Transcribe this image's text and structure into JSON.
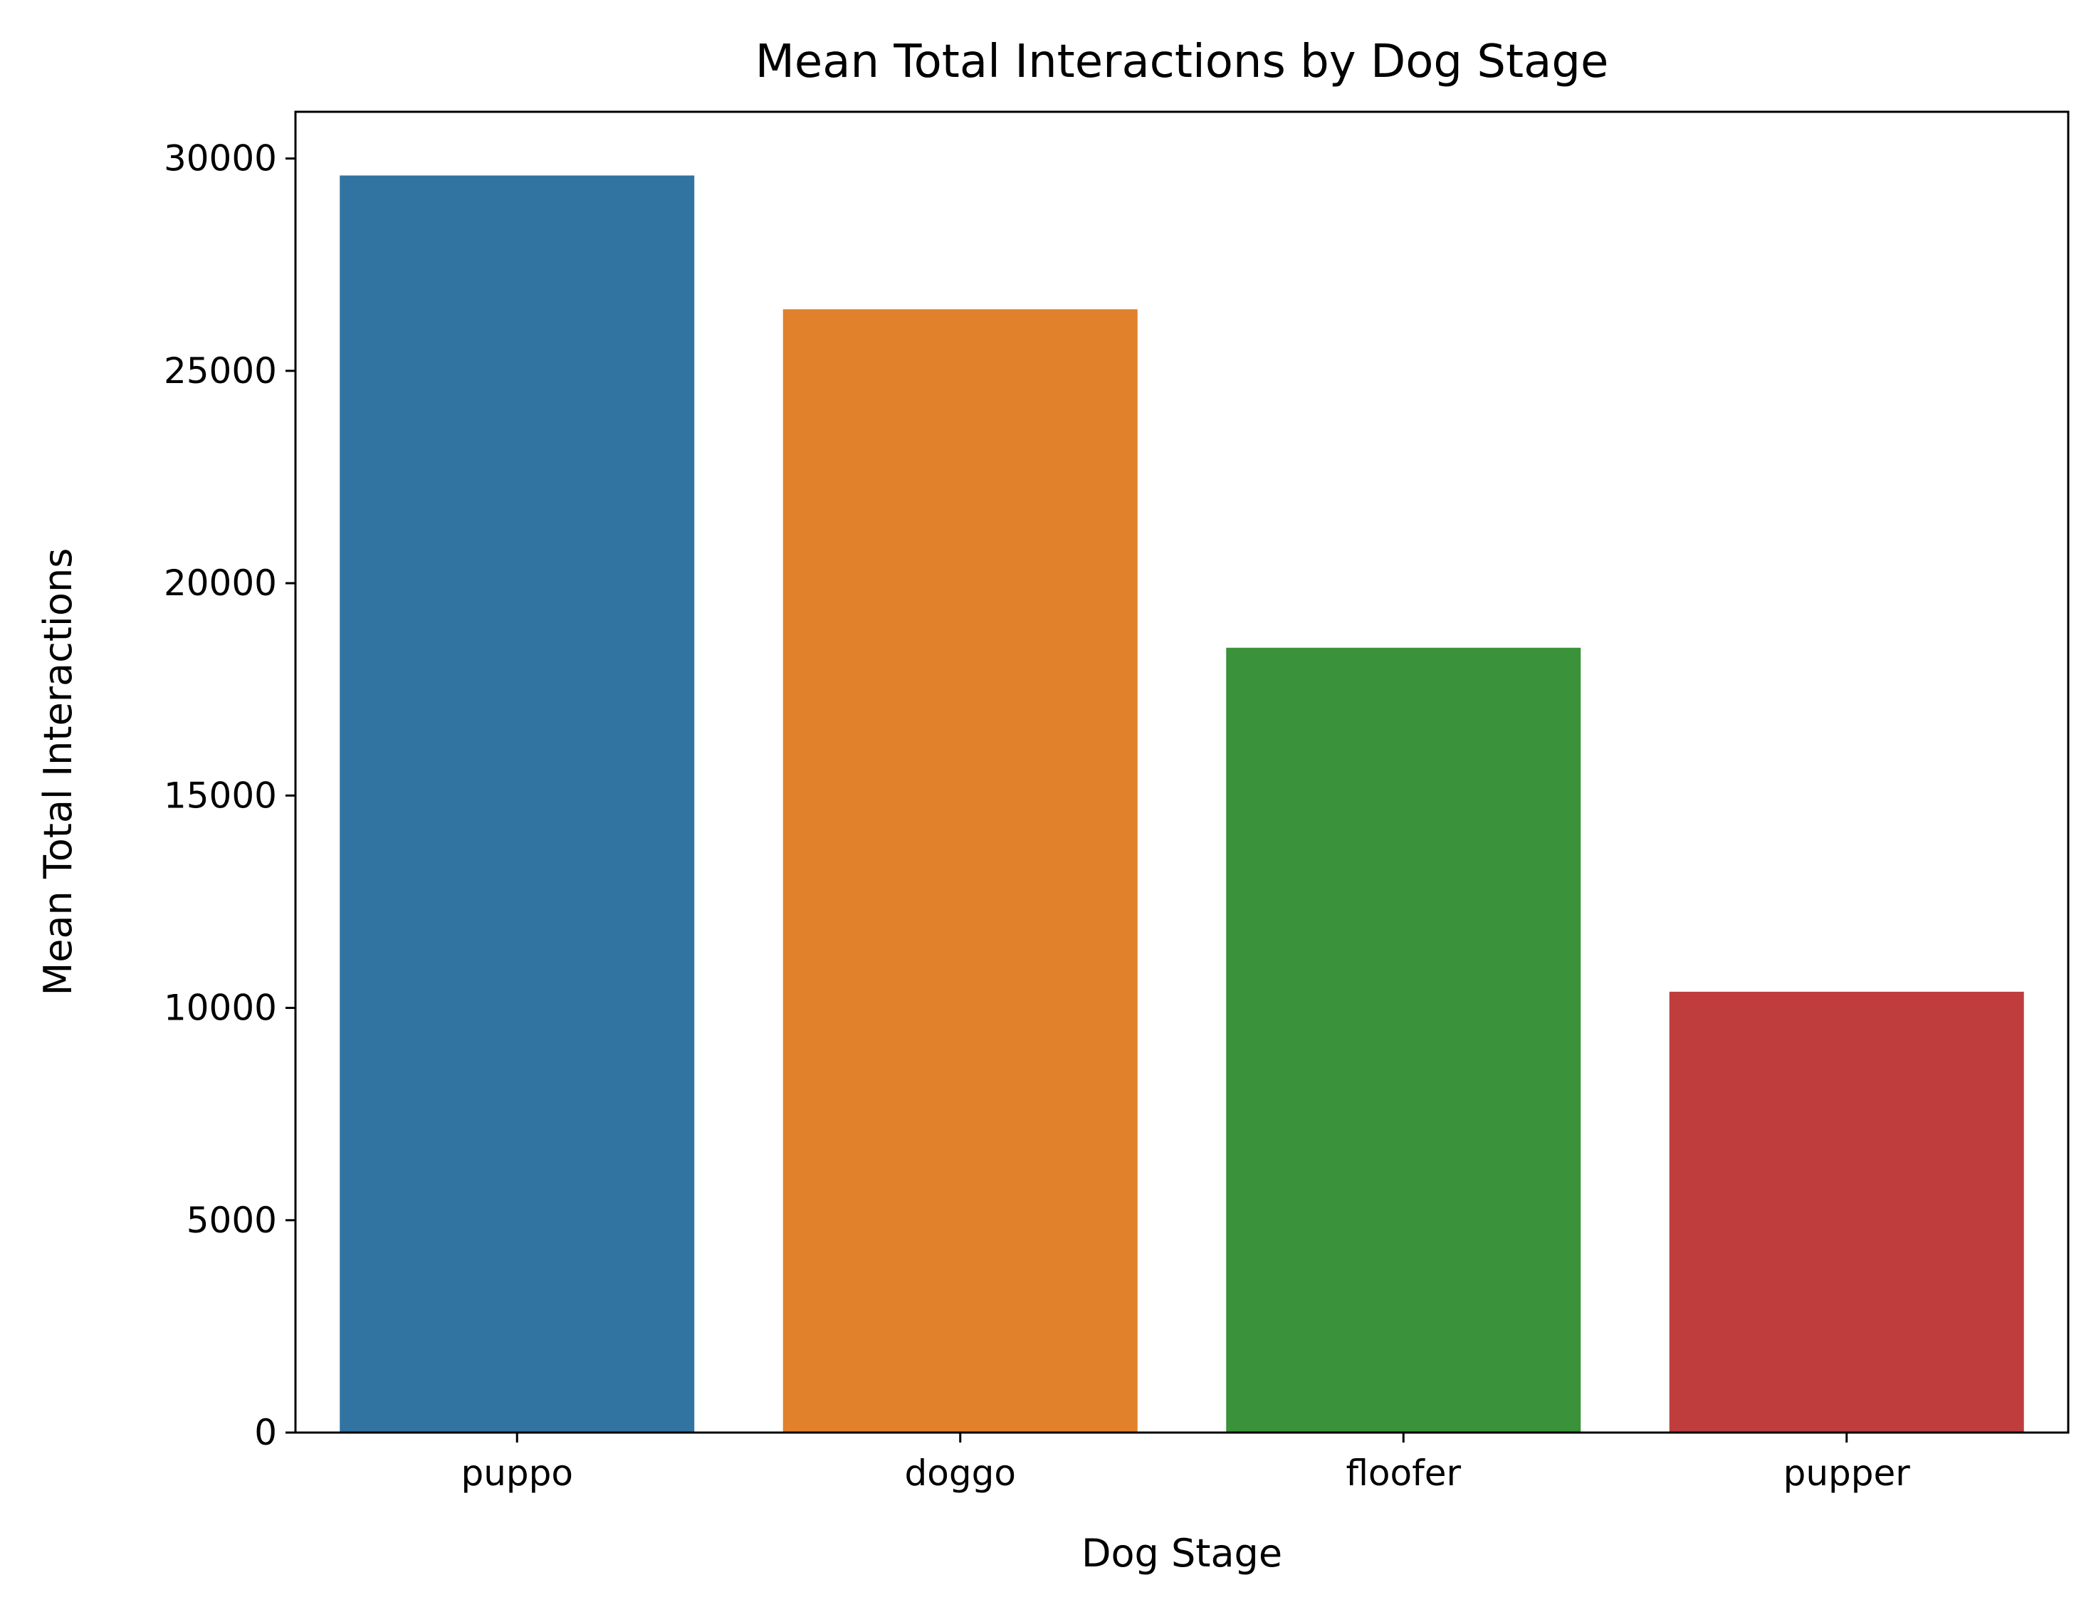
{
  "chart_data": {
    "type": "bar",
    "title": "Mean Total Interactions by Dog Stage",
    "xlabel": "Dog Stage",
    "ylabel": "Mean Total Interactions",
    "categories": [
      "puppo",
      "doggo",
      "floofer",
      "pupper"
    ],
    "values": [
      29600,
      26450,
      18480,
      10380
    ],
    "colors": [
      "#3274a1",
      "#e1812c",
      "#3a923a",
      "#c03d3e"
    ],
    "ylim": [
      0,
      31100
    ],
    "yticks": [
      0,
      5000,
      10000,
      15000,
      20000,
      25000,
      30000
    ],
    "grid": false,
    "legend": "none"
  }
}
